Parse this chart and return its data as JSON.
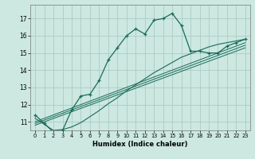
{
  "xlabel": "Humidex (Indice chaleur)",
  "bg_color": "#cce8e0",
  "grid_color": "#aaccc4",
  "line_color": "#1a6b5a",
  "xlim": [
    -0.5,
    23.5
  ],
  "ylim": [
    10.5,
    17.8
  ],
  "yticks": [
    11,
    12,
    13,
    14,
    15,
    16,
    17
  ],
  "xticks": [
    0,
    1,
    2,
    3,
    4,
    5,
    6,
    7,
    8,
    9,
    10,
    11,
    12,
    13,
    14,
    15,
    16,
    17,
    18,
    19,
    20,
    21,
    22,
    23
  ],
  "main_line_x": [
    0,
    1,
    2,
    3,
    4,
    5,
    6,
    7,
    8,
    9,
    10,
    11,
    12,
    13,
    14,
    15,
    16,
    17,
    18,
    19,
    20,
    21,
    22,
    23
  ],
  "main_line_y": [
    11.4,
    10.9,
    10.4,
    10.5,
    11.7,
    12.5,
    12.6,
    13.4,
    14.6,
    15.3,
    16.0,
    16.4,
    16.1,
    16.9,
    17.0,
    17.3,
    16.6,
    15.1,
    15.1,
    15.0,
    15.0,
    15.4,
    15.6,
    15.8
  ],
  "line2_x": [
    0,
    1,
    2,
    3,
    4,
    5,
    6,
    7,
    8,
    9,
    10,
    11,
    12,
    13,
    14,
    15,
    16,
    17,
    18,
    19,
    20,
    21,
    22,
    23
  ],
  "line2_y": [
    11.2,
    10.85,
    10.5,
    10.55,
    10.7,
    10.95,
    11.3,
    11.65,
    12.05,
    12.4,
    12.8,
    13.15,
    13.5,
    13.85,
    14.15,
    14.45,
    14.75,
    14.95,
    15.15,
    15.35,
    15.5,
    15.6,
    15.7,
    15.8
  ],
  "line3_x": [
    0,
    23
  ],
  "line3_y": [
    11.0,
    15.6
  ],
  "line4_x": [
    0,
    23
  ],
  "line4_y": [
    10.9,
    15.45
  ],
  "line5_x": [
    0,
    23
  ],
  "line5_y": [
    10.8,
    15.3
  ],
  "xtick_fontsize": 4.8,
  "ytick_fontsize": 5.5,
  "xlabel_fontsize": 6.0
}
